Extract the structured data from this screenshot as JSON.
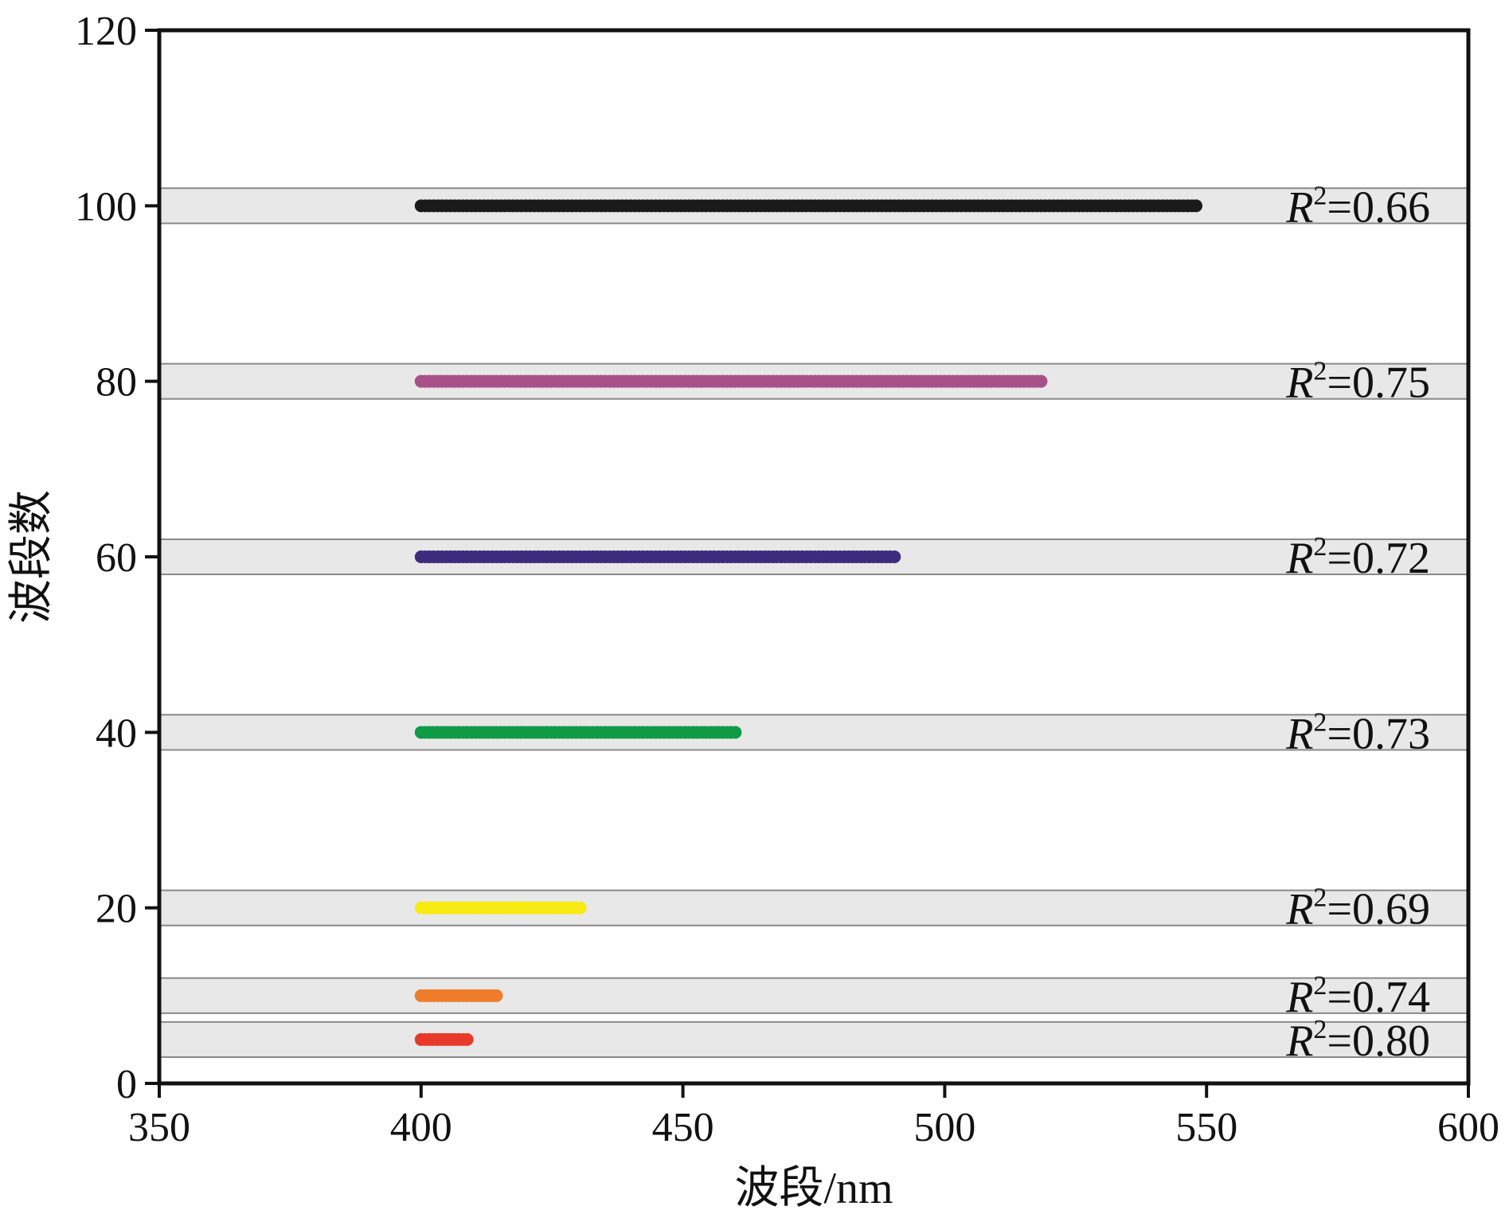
{
  "chart_data": {
    "type": "scatter",
    "title": "",
    "xlabel": "波段/nm",
    "ylabel": "波段数",
    "xlim": [
      350,
      600
    ],
    "ylim": [
      0,
      120
    ],
    "xticks": [
      350,
      400,
      450,
      500,
      550,
      600
    ],
    "yticks": [
      0,
      20,
      40,
      60,
      80,
      100,
      120
    ],
    "grid": false,
    "band_shading": {
      "color": "#e8e8e8",
      "half_height": 2
    },
    "series": [
      {
        "y": 100,
        "x_range": [
          400,
          548
        ],
        "color": "#1a1a1a",
        "r2": "0.66"
      },
      {
        "y": 80,
        "x_range": [
          400,
          519
        ],
        "color": "#a8508a",
        "r2": "0.75"
      },
      {
        "y": 60,
        "x_range": [
          400,
          491
        ],
        "color": "#3d2b7c",
        "r2": "0.72"
      },
      {
        "y": 40,
        "x_range": [
          400,
          460
        ],
        "color": "#0f9a46",
        "r2": "0.73"
      },
      {
        "y": 20,
        "x_range": [
          400,
          431
        ],
        "color": "#f7ea12",
        "r2": "0.69"
      },
      {
        "y": 10,
        "x_range": [
          400,
          415
        ],
        "color": "#ef7c2a",
        "r2": "0.74"
      },
      {
        "y": 5,
        "x_range": [
          400,
          409
        ],
        "color": "#e83a2a",
        "r2": "0.80"
      }
    ],
    "r2_prefix": "R",
    "r2_sup": "2"
  }
}
